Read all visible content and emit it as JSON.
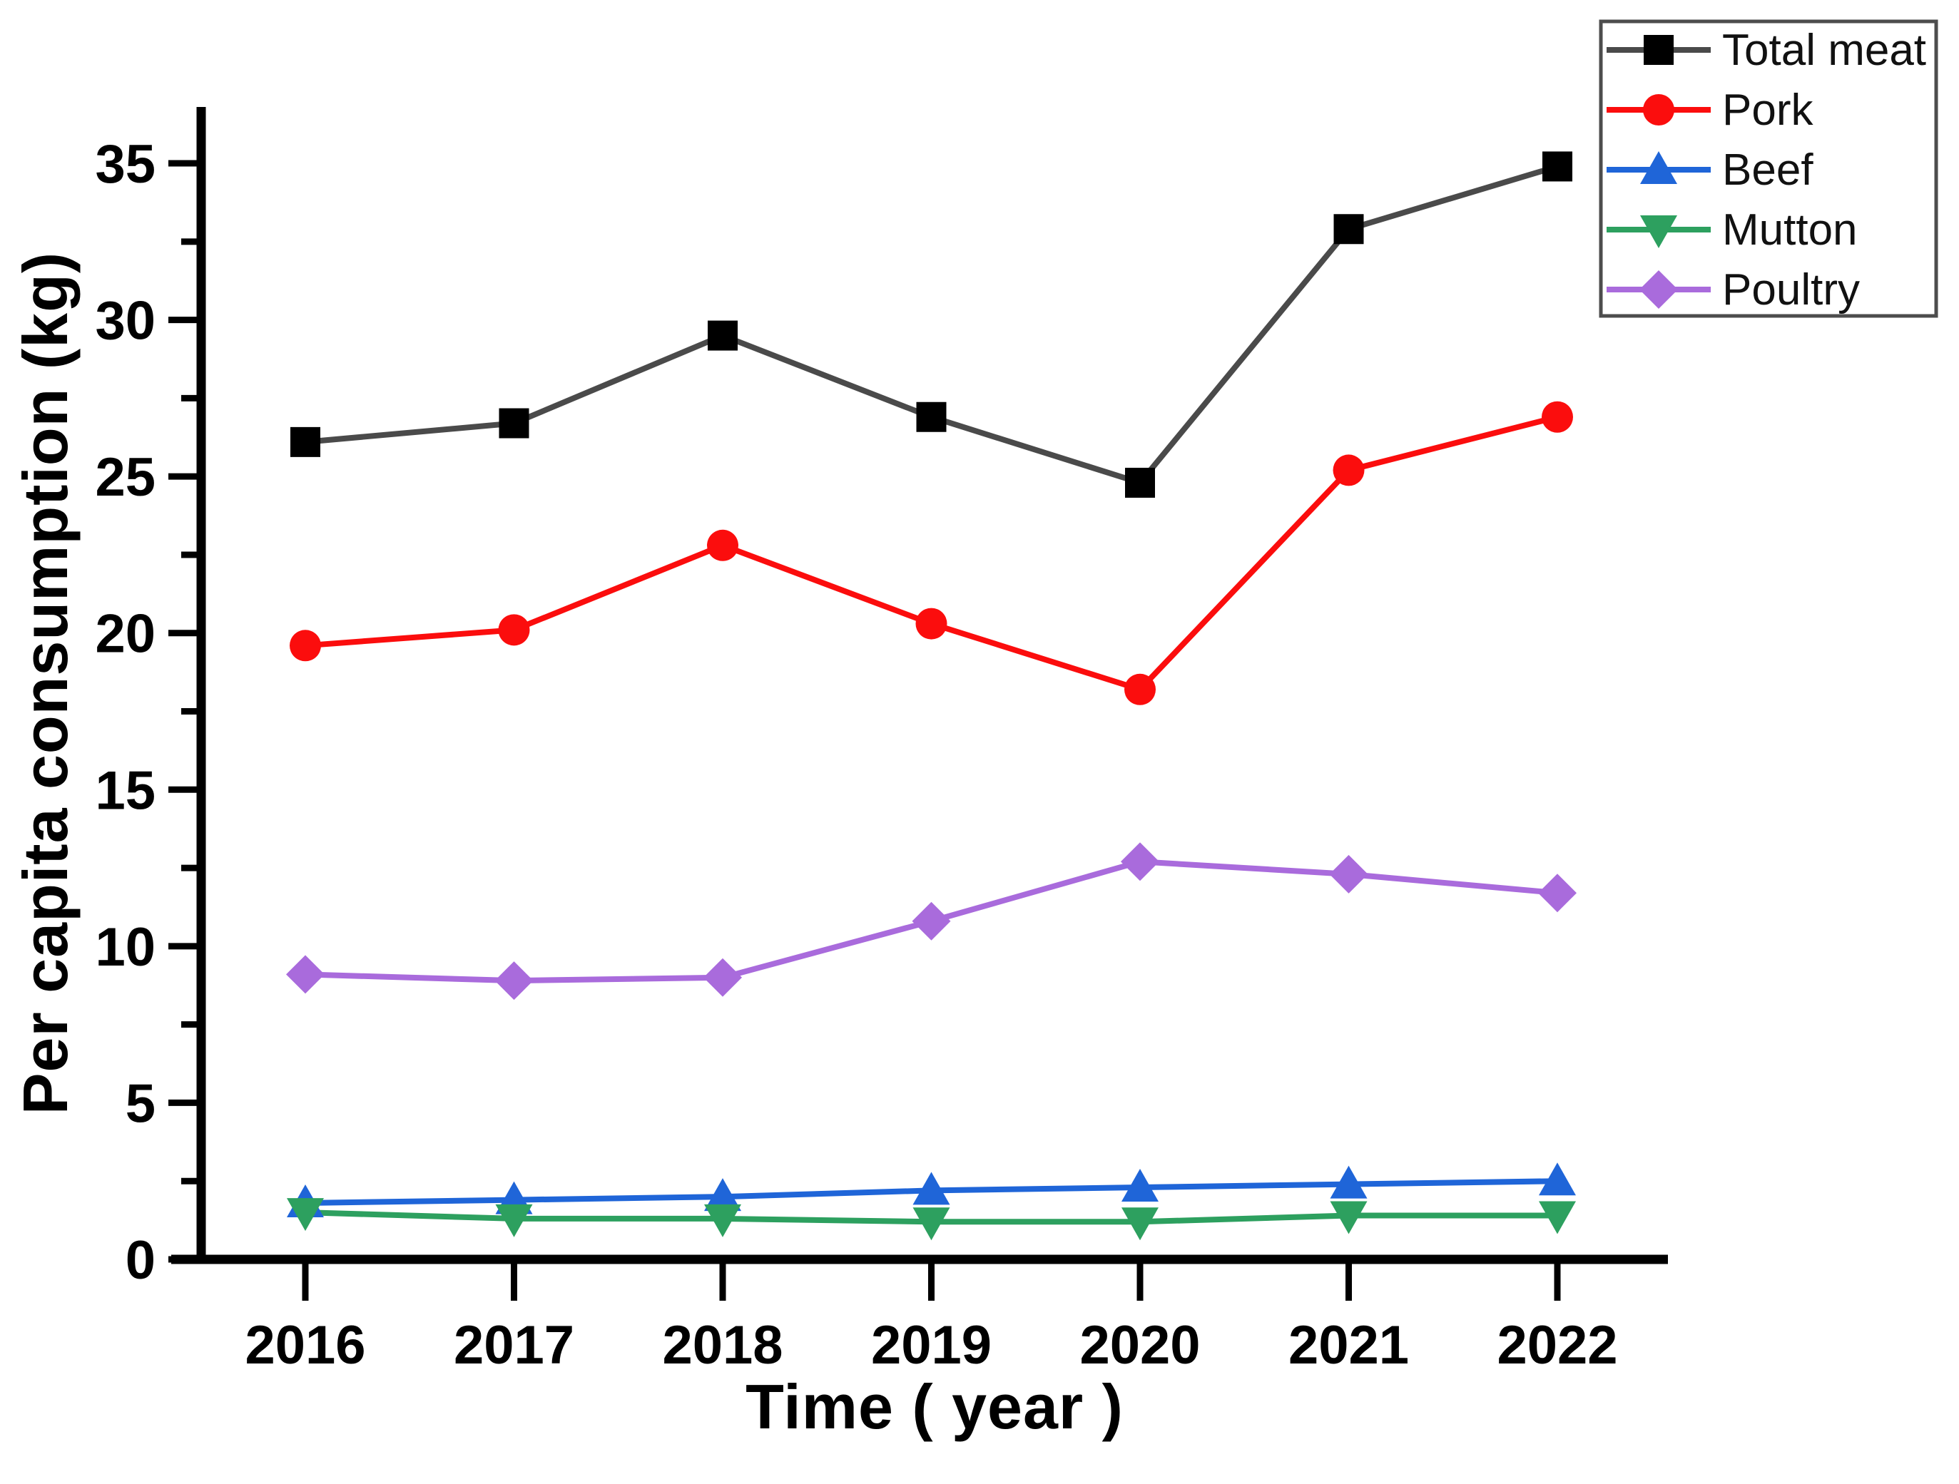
{
  "figure": {
    "x_axis_title": "Time ( year )",
    "y_axis_title": "Per capita consumption (kg)",
    "background_color": "#ffffff",
    "axis_color": "#000000",
    "legend_border_color": "#4d4d4d"
  },
  "chart_data": {
    "type": "line",
    "title": "",
    "xlabel": "Time ( year )",
    "ylabel": "Per capita consumption (kg)",
    "grid": false,
    "legend_position": "top-right",
    "x": [
      2016,
      2017,
      2018,
      2019,
      2020,
      2021,
      2022
    ],
    "ylim": [
      0,
      36.8
    ],
    "yticks_major": [
      0,
      5,
      10,
      15,
      20,
      25,
      30,
      35
    ],
    "yticks_minor": [
      2.5,
      7.5,
      12.5,
      17.5,
      22.5,
      27.5,
      32.5
    ],
    "series": [
      {
        "name": "Total meat",
        "marker": "square",
        "line_color": "#4a4a4a",
        "marker_color": "#000000",
        "values": [
          26.1,
          26.7,
          29.5,
          26.9,
          24.8,
          32.9,
          34.9
        ]
      },
      {
        "name": "Pork",
        "marker": "circle",
        "line_color": "#fb0d0d",
        "marker_color": "#fb0d0d",
        "values": [
          19.6,
          20.1,
          22.8,
          20.3,
          18.2,
          25.2,
          26.9
        ]
      },
      {
        "name": "Beef",
        "marker": "triangle-up",
        "line_color": "#1f65d8",
        "marker_color": "#1f65d8",
        "values": [
          1.8,
          1.9,
          2.0,
          2.2,
          2.3,
          2.4,
          2.5
        ]
      },
      {
        "name": "Mutton",
        "marker": "triangle-down",
        "line_color": "#2da05f",
        "marker_color": "#2da05f",
        "values": [
          1.5,
          1.3,
          1.3,
          1.2,
          1.2,
          1.4,
          1.4
        ]
      },
      {
        "name": "Poultry",
        "marker": "diamond",
        "line_color": "#a96bdc",
        "marker_color": "#a96bdc",
        "values": [
          9.1,
          8.9,
          9.0,
          10.8,
          12.7,
          12.3,
          11.7
        ]
      }
    ]
  }
}
